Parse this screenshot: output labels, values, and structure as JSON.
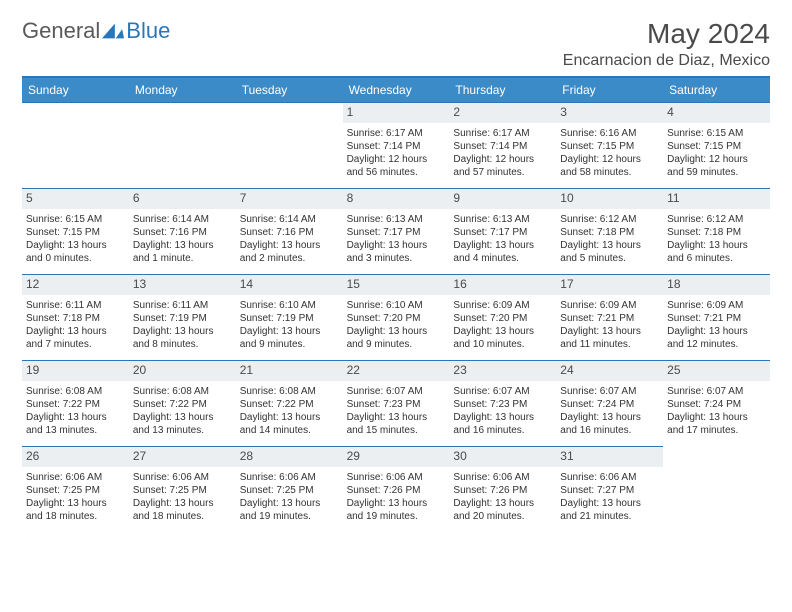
{
  "logo": {
    "text1": "General",
    "text2": "Blue"
  },
  "title": "May 2024",
  "location": "Encarnacion de Diaz, Mexico",
  "colors": {
    "header_bg": "#3b8bc9",
    "accent": "#2a76b8",
    "daynum_bg": "#eceff1",
    "text": "#333333",
    "title_text": "#4a4a4a"
  },
  "weekdays": [
    "Sunday",
    "Monday",
    "Tuesday",
    "Wednesday",
    "Thursday",
    "Friday",
    "Saturday"
  ],
  "grid": {
    "leading_blanks": 3,
    "days": [
      {
        "n": 1,
        "sr": "6:17 AM",
        "ss": "7:14 PM",
        "dl": "12 hours and 56 minutes."
      },
      {
        "n": 2,
        "sr": "6:17 AM",
        "ss": "7:14 PM",
        "dl": "12 hours and 57 minutes."
      },
      {
        "n": 3,
        "sr": "6:16 AM",
        "ss": "7:15 PM",
        "dl": "12 hours and 58 minutes."
      },
      {
        "n": 4,
        "sr": "6:15 AM",
        "ss": "7:15 PM",
        "dl": "12 hours and 59 minutes."
      },
      {
        "n": 5,
        "sr": "6:15 AM",
        "ss": "7:15 PM",
        "dl": "13 hours and 0 minutes."
      },
      {
        "n": 6,
        "sr": "6:14 AM",
        "ss": "7:16 PM",
        "dl": "13 hours and 1 minute."
      },
      {
        "n": 7,
        "sr": "6:14 AM",
        "ss": "7:16 PM",
        "dl": "13 hours and 2 minutes."
      },
      {
        "n": 8,
        "sr": "6:13 AM",
        "ss": "7:17 PM",
        "dl": "13 hours and 3 minutes."
      },
      {
        "n": 9,
        "sr": "6:13 AM",
        "ss": "7:17 PM",
        "dl": "13 hours and 4 minutes."
      },
      {
        "n": 10,
        "sr": "6:12 AM",
        "ss": "7:18 PM",
        "dl": "13 hours and 5 minutes."
      },
      {
        "n": 11,
        "sr": "6:12 AM",
        "ss": "7:18 PM",
        "dl": "13 hours and 6 minutes."
      },
      {
        "n": 12,
        "sr": "6:11 AM",
        "ss": "7:18 PM",
        "dl": "13 hours and 7 minutes."
      },
      {
        "n": 13,
        "sr": "6:11 AM",
        "ss": "7:19 PM",
        "dl": "13 hours and 8 minutes."
      },
      {
        "n": 14,
        "sr": "6:10 AM",
        "ss": "7:19 PM",
        "dl": "13 hours and 9 minutes."
      },
      {
        "n": 15,
        "sr": "6:10 AM",
        "ss": "7:20 PM",
        "dl": "13 hours and 9 minutes."
      },
      {
        "n": 16,
        "sr": "6:09 AM",
        "ss": "7:20 PM",
        "dl": "13 hours and 10 minutes."
      },
      {
        "n": 17,
        "sr": "6:09 AM",
        "ss": "7:21 PM",
        "dl": "13 hours and 11 minutes."
      },
      {
        "n": 18,
        "sr": "6:09 AM",
        "ss": "7:21 PM",
        "dl": "13 hours and 12 minutes."
      },
      {
        "n": 19,
        "sr": "6:08 AM",
        "ss": "7:22 PM",
        "dl": "13 hours and 13 minutes."
      },
      {
        "n": 20,
        "sr": "6:08 AM",
        "ss": "7:22 PM",
        "dl": "13 hours and 13 minutes."
      },
      {
        "n": 21,
        "sr": "6:08 AM",
        "ss": "7:22 PM",
        "dl": "13 hours and 14 minutes."
      },
      {
        "n": 22,
        "sr": "6:07 AM",
        "ss": "7:23 PM",
        "dl": "13 hours and 15 minutes."
      },
      {
        "n": 23,
        "sr": "6:07 AM",
        "ss": "7:23 PM",
        "dl": "13 hours and 16 minutes."
      },
      {
        "n": 24,
        "sr": "6:07 AM",
        "ss": "7:24 PM",
        "dl": "13 hours and 16 minutes."
      },
      {
        "n": 25,
        "sr": "6:07 AM",
        "ss": "7:24 PM",
        "dl": "13 hours and 17 minutes."
      },
      {
        "n": 26,
        "sr": "6:06 AM",
        "ss": "7:25 PM",
        "dl": "13 hours and 18 minutes."
      },
      {
        "n": 27,
        "sr": "6:06 AM",
        "ss": "7:25 PM",
        "dl": "13 hours and 18 minutes."
      },
      {
        "n": 28,
        "sr": "6:06 AM",
        "ss": "7:25 PM",
        "dl": "13 hours and 19 minutes."
      },
      {
        "n": 29,
        "sr": "6:06 AM",
        "ss": "7:26 PM",
        "dl": "13 hours and 19 minutes."
      },
      {
        "n": 30,
        "sr": "6:06 AM",
        "ss": "7:26 PM",
        "dl": "13 hours and 20 minutes."
      },
      {
        "n": 31,
        "sr": "6:06 AM",
        "ss": "7:27 PM",
        "dl": "13 hours and 21 minutes."
      }
    ]
  },
  "labels": {
    "sunrise": "Sunrise:",
    "sunset": "Sunset:",
    "daylight": "Daylight:"
  }
}
